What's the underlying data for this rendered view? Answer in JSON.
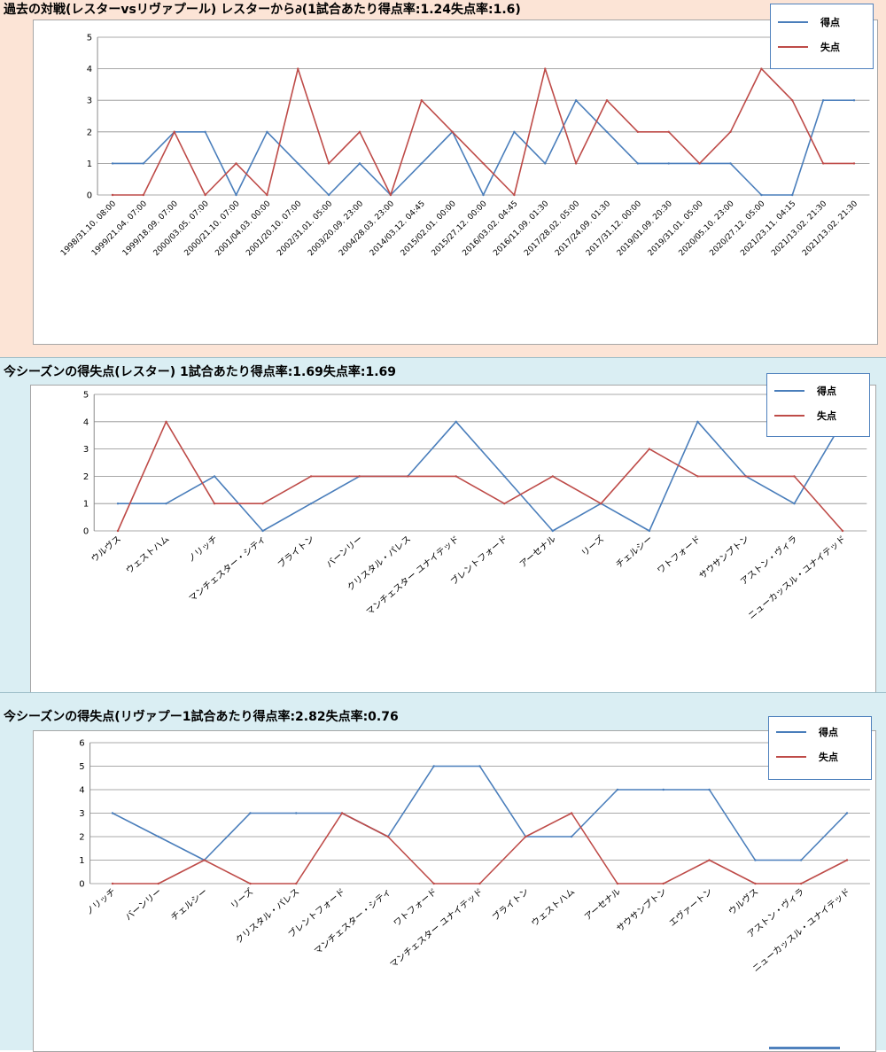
{
  "colors": {
    "goals": "#4a7ebb",
    "conceded": "#be4b48",
    "grid": "#8c8c8c"
  },
  "sections": [
    {
      "title": "過去の対戦(レスターvsリヴァプール) レスターから∂(1試合あたり得点率:1.24失点率:1.6)"
    },
    {
      "title": "今シーズンの得失点(レスター) 1試合あたり得点率:1.69失点率:1.69"
    },
    {
      "title": "今シーズンの得失点(リヴァプー1試合あたり得点率:2.82失点率:0.76"
    }
  ],
  "chart_data": [
    {
      "type": "line",
      "categories": [
        "1998/31.10. 08:00",
        "1999/21.04. 07:00",
        "1999/18.09. 07:00",
        "2000/03.05. 07:00",
        "2000/21.10. 07:00",
        "2001/04.03. 00:00",
        "2001/20.10. 07:00",
        "2002/31.01. 05:00",
        "2003/20.09. 23:00",
        "2004/28.03. 23:00",
        "2014/03.12. 04:45",
        "2015/02.01. 00:00",
        "2015/27.12. 00:00",
        "2016/03.02. 04:45",
        "2016/11.09. 01:30",
        "2017/28.02. 05:00",
        "2017/24.09. 01:30",
        "2017/31.12. 00:00",
        "2019/01.09. 20:30",
        "2019/31.01. 05:00",
        "2020/05.10. 23:00",
        "2020/27.12. 05:00",
        "2021/23.11. 04:15",
        "2021/13.02. 21:30",
        "2021/13.02. 21:30"
      ],
      "series": [
        {
          "name": "得点",
          "values": [
            1,
            1,
            2,
            2,
            0,
            2,
            1,
            0,
            1,
            0,
            1,
            2,
            0,
            2,
            1,
            3,
            2,
            1,
            1,
            1,
            1,
            0,
            0,
            3,
            3
          ]
        },
        {
          "name": "失点",
          "values": [
            0,
            0,
            2,
            0,
            1,
            0,
            4,
            1,
            2,
            0,
            3,
            2,
            1,
            0,
            4,
            1,
            3,
            2,
            2,
            1,
            2,
            4,
            3,
            1,
            1
          ]
        }
      ],
      "ylim": [
        0,
        5
      ],
      "yticks": [
        "0",
        "1",
        "2",
        "3",
        "4",
        "5"
      ],
      "grid": true,
      "legend": "top-right"
    },
    {
      "type": "line",
      "categories": [
        "ウルヴス",
        "ウェストハム",
        "ノリッチ",
        "マンチェスター・シティ",
        "ブライトン",
        "バーンリー",
        "クリスタル・パレス",
        "マンチェスター ユナイテッド",
        "ブレントフォード",
        "アーセナル",
        "リーズ",
        "チェルシー",
        "ワトフォード",
        "サウサンプトン",
        "アストン・ヴィラ",
        "ニューカッスル・ユナイテッド"
      ],
      "series": [
        {
          "name": "得点",
          "values": [
            1,
            1,
            2,
            0,
            1,
            2,
            2,
            4,
            2,
            0,
            1,
            0,
            4,
            2,
            1,
            4
          ]
        },
        {
          "name": "失点",
          "values": [
            0,
            4,
            1,
            1,
            2,
            2,
            2,
            2,
            1,
            2,
            1,
            3,
            2,
            2,
            2,
            0
          ]
        }
      ],
      "ylim": [
        0,
        5
      ],
      "yticks": [
        "0",
        "1",
        "2",
        "3",
        "4",
        "5"
      ],
      "grid": true,
      "legend": "top-right"
    },
    {
      "type": "line",
      "categories": [
        "ノリッチ",
        "バーンリー",
        "チェルシー",
        "リーズ",
        "クリスタル・パレス",
        "ブレントフォード",
        "マンチェスター・シティ",
        "ワトフォード",
        "マンチェスター ユナイテッド",
        "ブライトン",
        "ウェストハム",
        "アーセナル",
        "サウサンプトン",
        "エヴァートン",
        "ウルヴス",
        "アストン・ヴィラ",
        "ニューカッスル・ユナイテッド"
      ],
      "series": [
        {
          "name": "得点",
          "values": [
            3,
            2,
            1,
            3,
            3,
            3,
            2,
            5,
            5,
            2,
            2,
            4,
            4,
            4,
            1,
            1,
            3
          ]
        },
        {
          "name": "失点",
          "values": [
            0,
            0,
            1,
            0,
            0,
            3,
            2,
            0,
            0,
            2,
            3,
            0,
            0,
            1,
            0,
            0,
            1
          ]
        }
      ],
      "ylim": [
        0,
        6
      ],
      "yticks": [
        "0",
        "1",
        "2",
        "3",
        "4",
        "5",
        "6"
      ],
      "grid": true,
      "legend": "top-right"
    }
  ]
}
